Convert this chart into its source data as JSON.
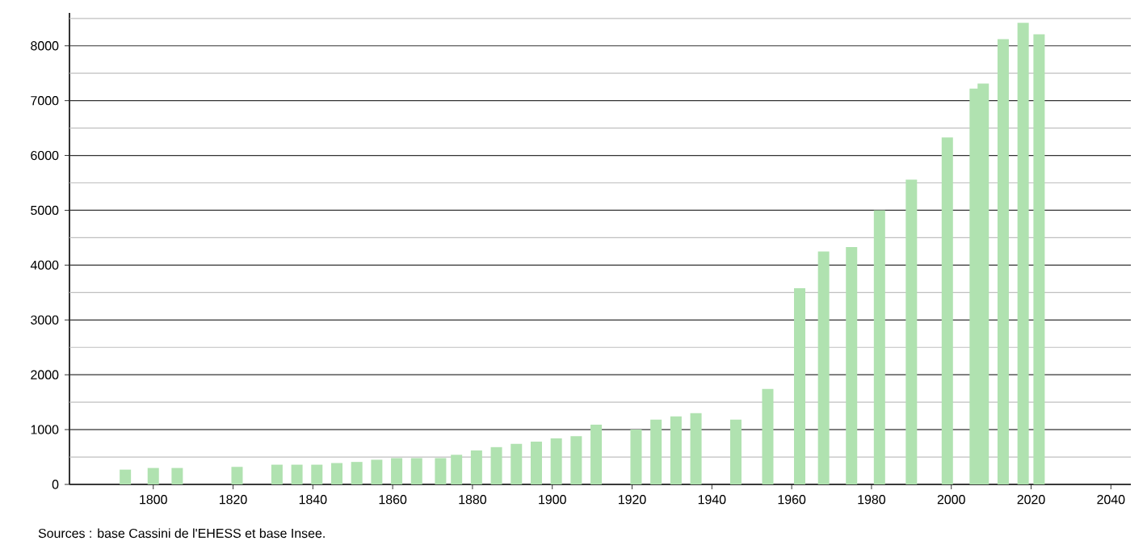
{
  "chart_data": {
    "type": "bar",
    "color": "#b0e2b0",
    "x": [
      1793,
      1800,
      1806,
      1821,
      1831,
      1836,
      1841,
      1846,
      1851,
      1856,
      1861,
      1866,
      1872,
      1876,
      1881,
      1886,
      1891,
      1896,
      1901,
      1906,
      1911,
      1921,
      1926,
      1931,
      1936,
      1946,
      1954,
      1962,
      1968,
      1975,
      1982,
      1990,
      1999,
      2006,
      2008,
      2013,
      2018,
      2022
    ],
    "values": [
      270,
      300,
      300,
      320,
      360,
      360,
      360,
      390,
      410,
      450,
      480,
      480,
      480,
      540,
      620,
      680,
      740,
      780,
      840,
      880,
      1090,
      1000,
      1180,
      1240,
      1300,
      1180,
      1740,
      3580,
      4250,
      4330,
      5000,
      5560,
      6330,
      7220,
      7310,
      8120,
      8420,
      8210
    ],
    "xlim": [
      1779,
      2045
    ],
    "xticks": [
      1800,
      1820,
      1840,
      1860,
      1880,
      1900,
      1920,
      1940,
      1960,
      1980,
      2000,
      2020,
      2040
    ],
    "ylim": [
      0,
      8600
    ],
    "yticks": [
      0,
      {
        "value": 500,
        "label": null
      },
      1000,
      {
        "value": 1500,
        "label": null
      },
      2000,
      {
        "value": 2500,
        "label": null
      },
      3000,
      {
        "value": 3500,
        "label": null
      },
      4000,
      {
        "value": 4500,
        "label": null
      },
      5000,
      {
        "value": 5500,
        "label": null
      },
      6000,
      {
        "value": 6500,
        "label": null
      },
      7000,
      {
        "value": 7500,
        "label": null
      },
      8000,
      {
        "value": 8500,
        "label": null
      }
    ],
    "grid": "y",
    "annotations": [
      "Sources : base Cassini de l'EHESS et base Insee."
    ]
  }
}
